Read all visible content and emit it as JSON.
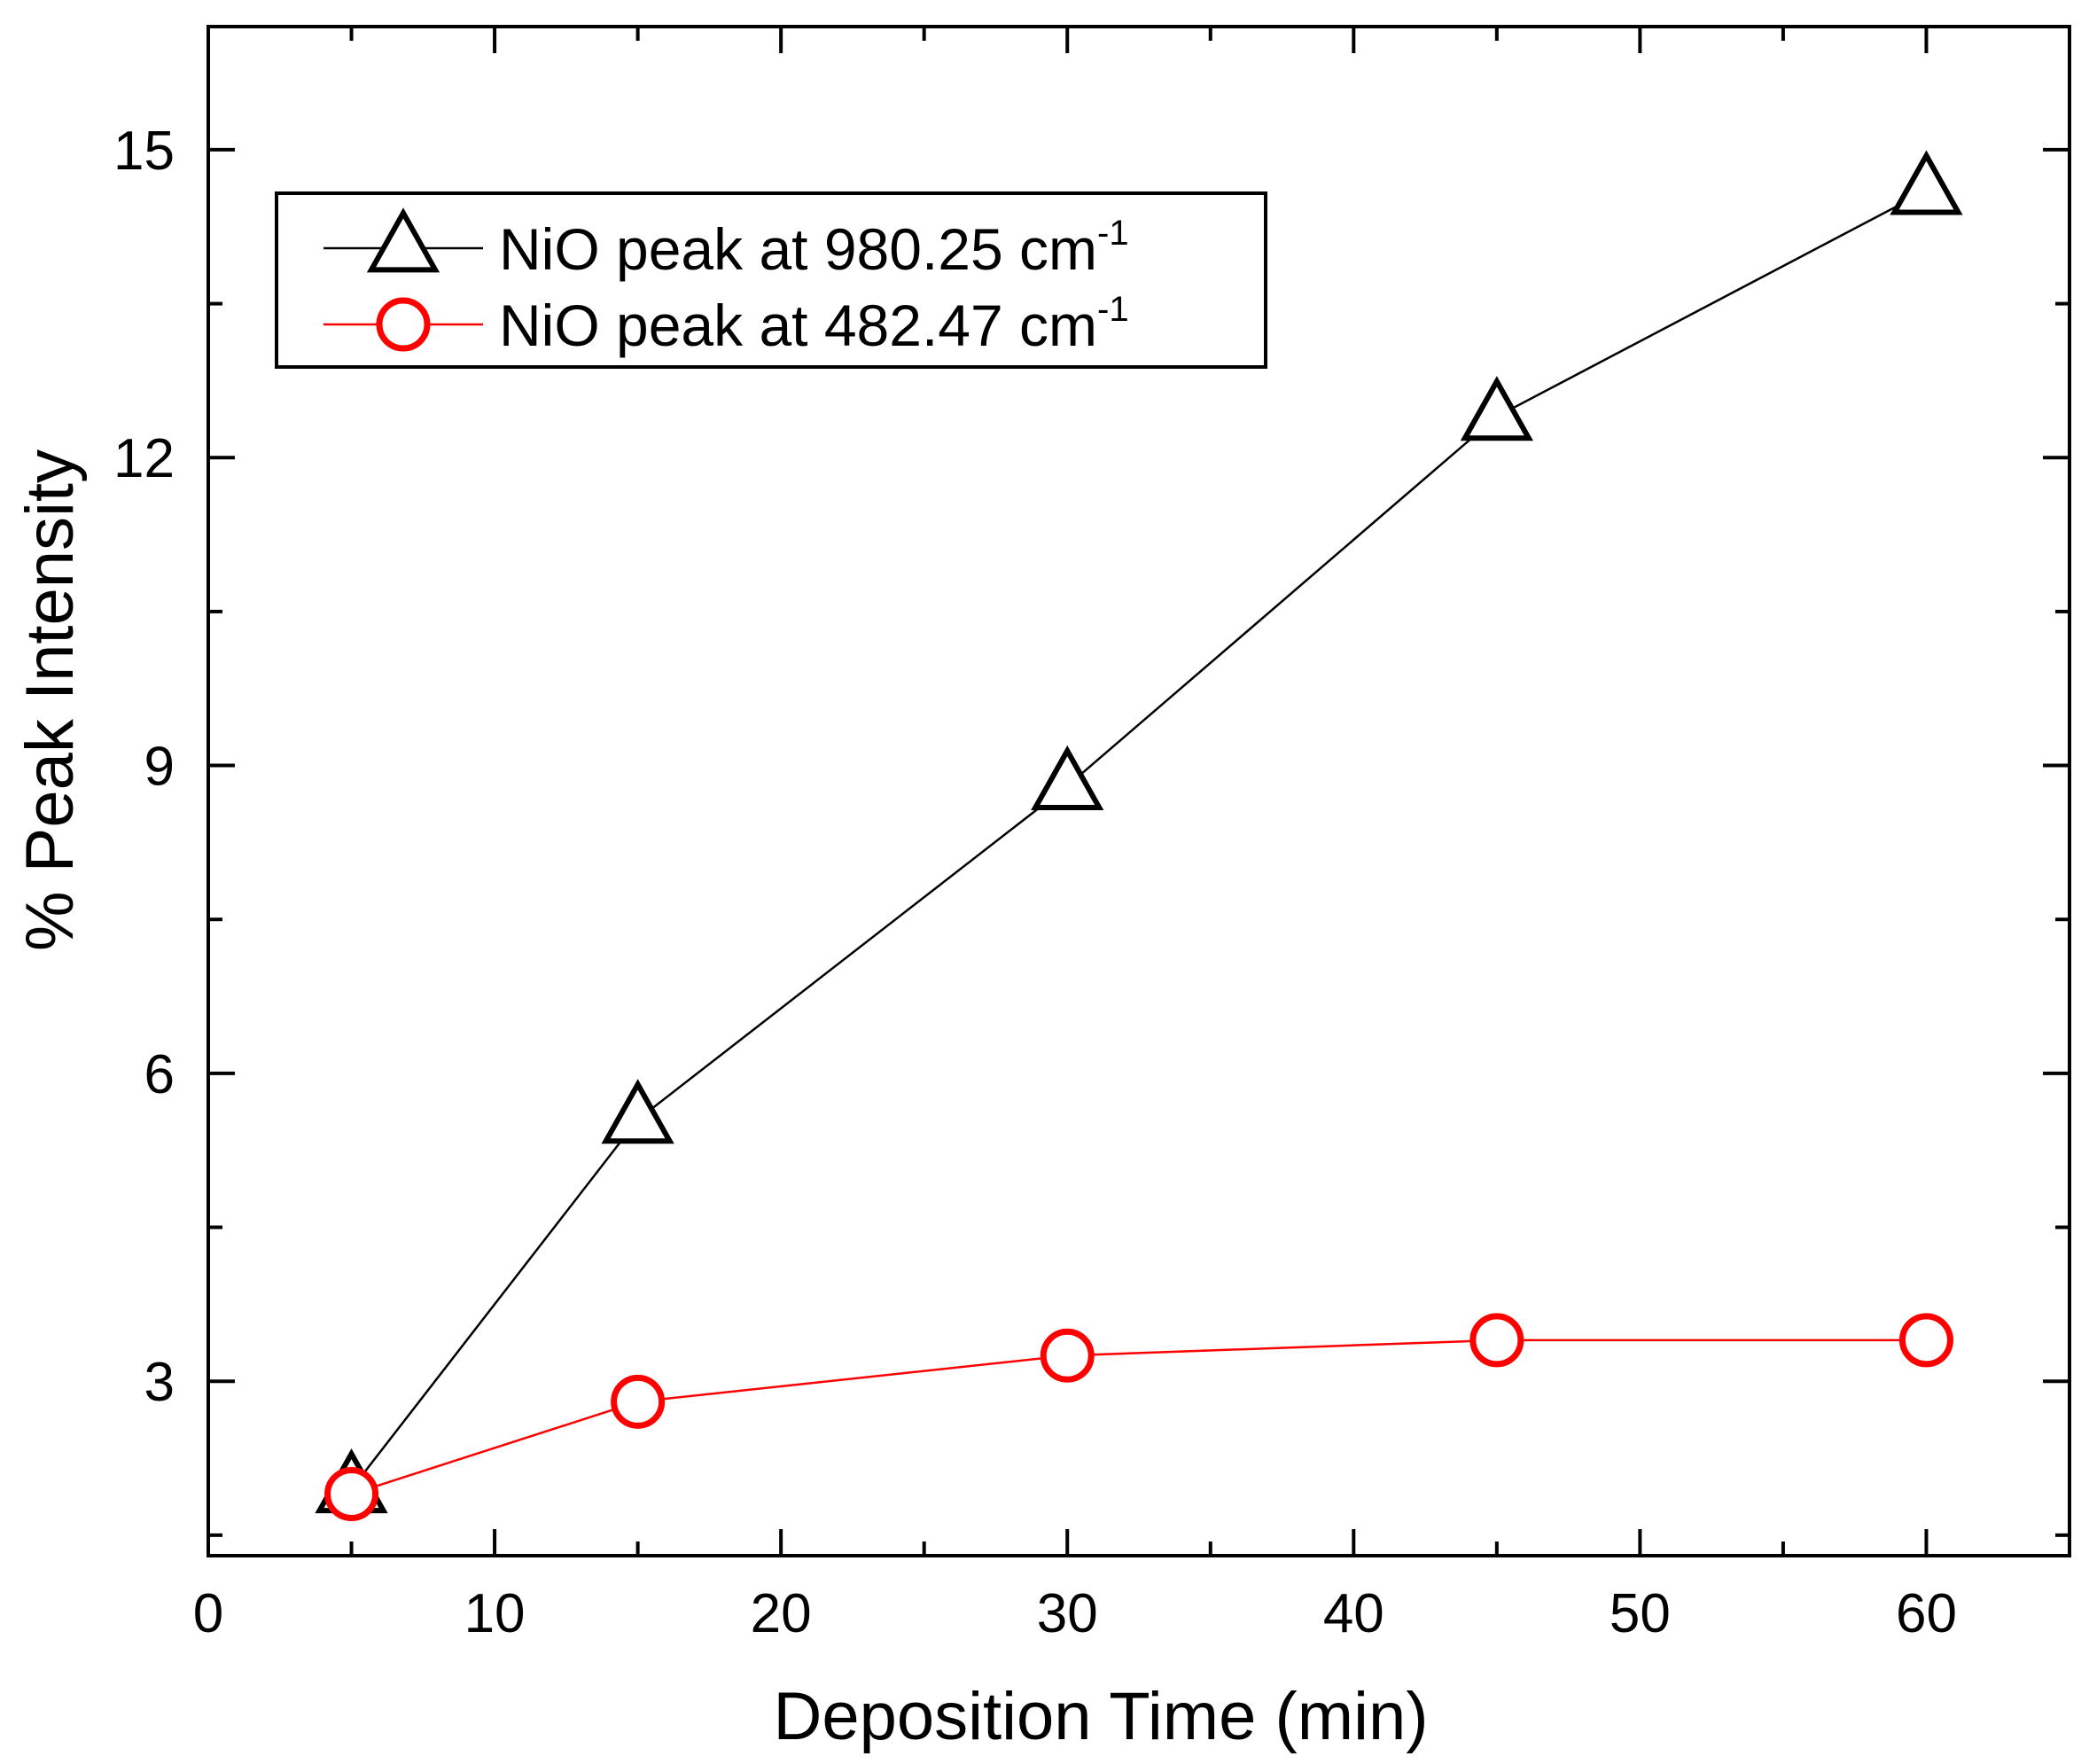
{
  "chart_data": {
    "type": "line",
    "title": "",
    "xlabel": "Deposition Time (min)",
    "ylabel": "% Peak Intensity",
    "xlim": [
      0,
      65
    ],
    "ylim": [
      1.3,
      16.2
    ],
    "xticks": [
      0,
      10,
      20,
      30,
      40,
      50,
      60
    ],
    "yticks": [
      3,
      6,
      9,
      12,
      15
    ],
    "x_minor_step": 5,
    "y_minor_step": 1.5,
    "grid": false,
    "legend_position": "top-left",
    "series": [
      {
        "name": "NiO peak at 980.25 cm-1",
        "label_main": "NiO peak at 980.25 cm",
        "label_sup": "-1",
        "marker": "triangle-open",
        "color": "#000000",
        "x": [
          5,
          15,
          30,
          45,
          60
        ],
        "values": [
          1.95,
          5.55,
          8.8,
          12.4,
          14.6
        ]
      },
      {
        "name": "NiO peak at 482.47 cm-1",
        "label_main": "NiO peak at 482.47 cm",
        "label_sup": "-1",
        "marker": "circle-open",
        "color": "#ff0000",
        "x": [
          5,
          15,
          30,
          45,
          60
        ],
        "values": [
          1.9,
          2.8,
          3.25,
          3.4,
          3.4
        ]
      }
    ]
  }
}
